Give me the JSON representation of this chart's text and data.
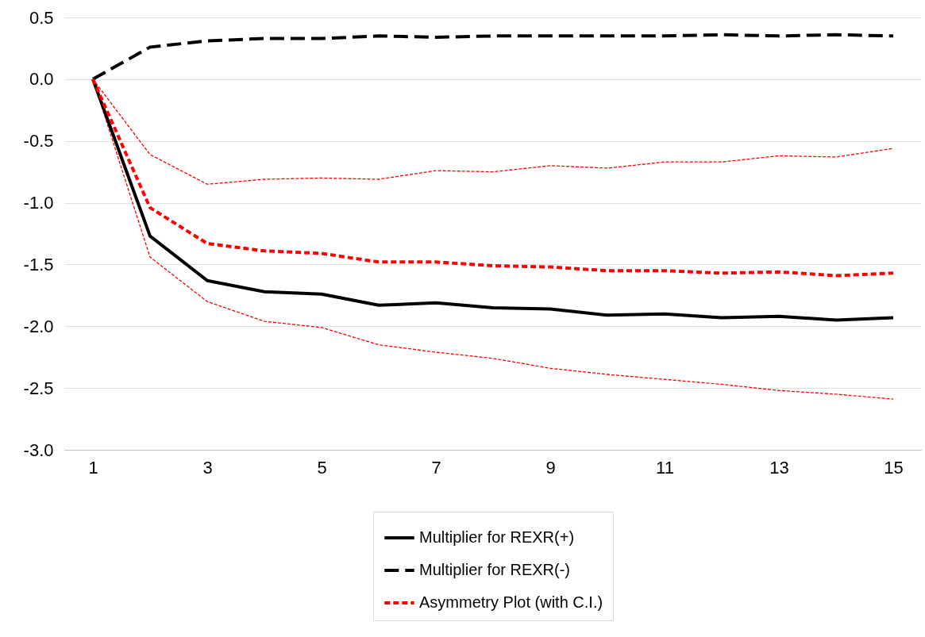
{
  "chart_data": {
    "type": "line",
    "x": [
      1,
      2,
      3,
      4,
      5,
      6,
      7,
      8,
      9,
      10,
      11,
      12,
      13,
      14,
      15
    ],
    "xlim": [
      0.5,
      15.5
    ],
    "xticks": [
      1,
      3,
      5,
      7,
      9,
      11,
      13,
      15
    ],
    "ylim": [
      -3,
      0.5
    ],
    "yticks": [
      0.5,
      {
        "value": 0,
        "label": "0.0"
      },
      -0.5,
      {
        "value": -1,
        "label": "-1.0"
      },
      -1.5,
      {
        "value": -2,
        "label": "-2.0"
      },
      -2.5,
      {
        "value": -3,
        "label": "-3.0"
      }
    ],
    "grid": "y",
    "legend": "bottom",
    "series": [
      {
        "name": "Multiplier for REXR(+)",
        "color": "#000000",
        "line_style": "solid",
        "values": [
          0,
          -1.27,
          -1.63,
          -1.72,
          -1.74,
          -1.83,
          -1.81,
          -1.85,
          -1.86,
          -1.91,
          -1.9,
          -1.93,
          -1.92,
          -1.95,
          -1.93
        ]
      },
      {
        "name": "Multiplier for REXR(-)",
        "color": "#000000",
        "line_style": "dashed",
        "values": [
          0,
          0.26,
          0.31,
          0.33,
          0.33,
          0.35,
          0.34,
          0.35,
          0.35,
          0.35,
          0.35,
          0.36,
          0.35,
          0.36,
          0.35
        ]
      },
      {
        "name": "Asymmetry Plot (with C.I.)",
        "color": "#ff0000",
        "line_style": "dotted",
        "values": [
          0,
          -1.04,
          -1.33,
          -1.39,
          -1.41,
          -1.48,
          -1.48,
          -1.51,
          -1.52,
          -1.55,
          -1.55,
          -1.57,
          -1.56,
          -1.59,
          -1.57
        ]
      },
      {
        "color": "#ff0000",
        "line_style": "dashed",
        "values": [
          0,
          -0.61,
          -0.85,
          -0.81,
          -0.8,
          -0.81,
          -0.74,
          -0.75,
          -0.7,
          -0.72,
          -0.67,
          -0.67,
          -0.62,
          -0.63,
          -0.56
        ]
      },
      {
        "color": "#ff0000",
        "line_style": "dashed",
        "values": [
          0,
          -1.44,
          -1.8,
          -1.96,
          -2.01,
          -2.15,
          -2.21,
          -2.26,
          -2.34,
          -2.39,
          -2.43,
          -2.47,
          -2.52,
          -2.55,
          -2.59
        ]
      }
    ]
  }
}
